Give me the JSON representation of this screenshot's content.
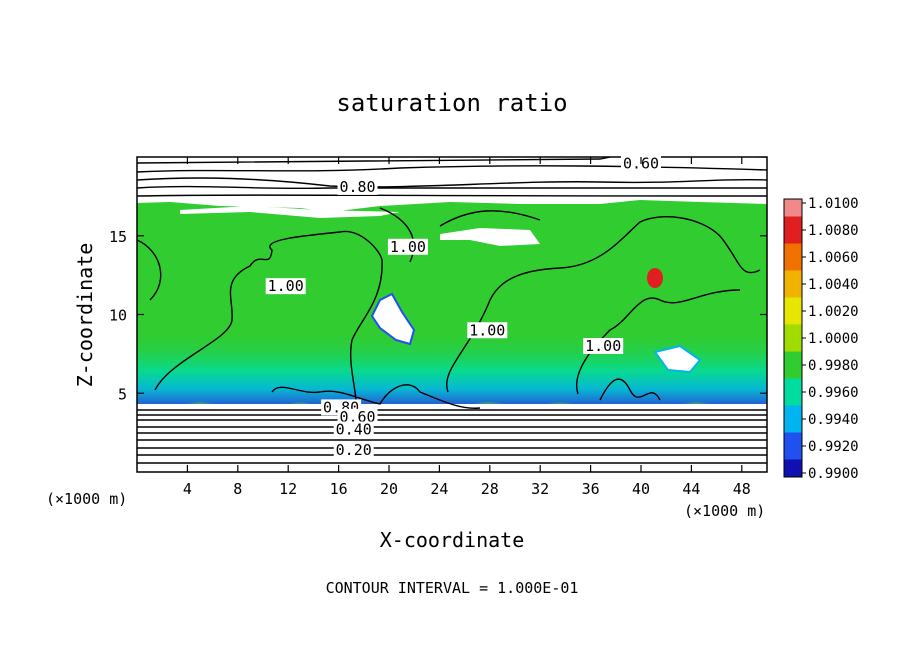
{
  "chart_data": {
    "type": "heatmap",
    "title": "saturation ratio",
    "xlabel": "X-coordinate",
    "ylabel": "Z-coordinate",
    "x_unit": "(×1000 m)",
    "y_unit": "(×1000 m)",
    "xlim": [
      0,
      50
    ],
    "ylim": [
      0,
      20
    ],
    "x_ticks": [
      "4",
      "8",
      "12",
      "16",
      "20",
      "24",
      "28",
      "32",
      "36",
      "40",
      "44",
      "48"
    ],
    "y_ticks": [
      "5",
      "10",
      "15"
    ],
    "footer": "CONTOUR INTERVAL = 1.000E-01",
    "colorbar": {
      "labels": [
        "1.0100",
        "1.0080",
        "1.0060",
        "1.0040",
        "1.0020",
        "1.0000",
        "0.9980",
        "0.9960",
        "0.9940",
        "0.9920",
        "0.9900"
      ],
      "colors": [
        "#f08a8a",
        "#e02020",
        "#f07000",
        "#f0b400",
        "#e6e600",
        "#a0dc00",
        "#30cc30",
        "#00dca0",
        "#00b4f0",
        "#2050f0",
        "#1010b0",
        "#5a1aa0"
      ]
    },
    "contour_labels": [
      {
        "text": "0.60",
        "x": 40.0,
        "z": 19.6
      },
      {
        "text": "0.80",
        "x": 17.5,
        "z": 18.1
      },
      {
        "text": "1.00",
        "x": 21.5,
        "z": 14.3
      },
      {
        "text": "1.00",
        "x": 11.8,
        "z": 11.8
      },
      {
        "text": "1.00",
        "x": 27.8,
        "z": 9.0
      },
      {
        "text": "1.00",
        "x": 37.0,
        "z": 8.0
      },
      {
        "text": "0.80",
        "x": 16.2,
        "z": 4.1
      },
      {
        "text": "0.60",
        "x": 17.5,
        "z": 3.5
      },
      {
        "text": "0.40",
        "x": 17.2,
        "z": 2.7
      },
      {
        "text": "0.20",
        "x": 17.2,
        "z": 1.4
      }
    ],
    "grid": false
  }
}
